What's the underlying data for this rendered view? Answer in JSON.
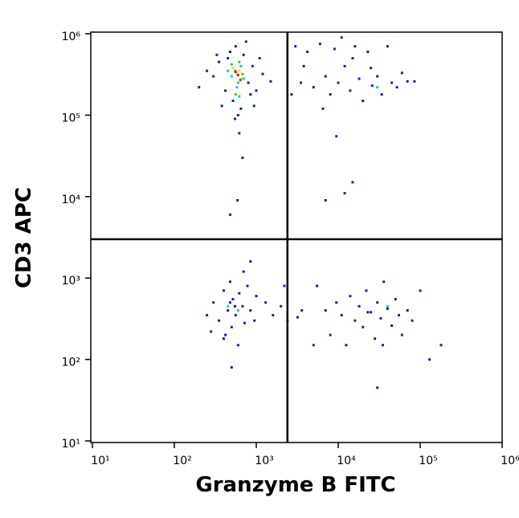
{
  "chart_data": {
    "type": "scatter",
    "x_label": "Granzyme B FITC",
    "y_label": "CD3 APC",
    "x_scale": "log",
    "y_scale": "log",
    "xlim": [
      10,
      1000000
    ],
    "ylim": [
      10,
      1000000
    ],
    "xticks": [
      {
        "value": 10,
        "label": "10¹"
      },
      {
        "value": 100,
        "label": "10²"
      },
      {
        "value": 1000,
        "label": "10³"
      },
      {
        "value": 10000,
        "label": "10⁴"
      },
      {
        "value": 100000,
        "label": "10⁵"
      },
      {
        "value": 1000000,
        "label": "10⁶"
      }
    ],
    "yticks": [
      {
        "value": 10,
        "label": "10¹"
      },
      {
        "value": 100,
        "label": "10²"
      },
      {
        "value": 1000,
        "label": "10³"
      },
      {
        "value": 10000,
        "label": "10⁴"
      },
      {
        "value": 100000,
        "label": "10⁵"
      },
      {
        "value": 1000000,
        "label": "10⁶"
      }
    ],
    "quadrant_x": 2400,
    "quadrant_y": 3000,
    "gate_color": "#000000",
    "series": [
      {
        "color": "#1c1ca8",
        "x": [
          300,
          350,
          420,
          480,
          520,
          560,
          650,
          700,
          800,
          900,
          1000,
          250,
          380,
          600,
          750,
          850,
          450,
          550,
          620,
          680,
          590,
          480,
          1200,
          1500,
          200,
          1100,
          330,
          940,
          3000,
          3500,
          4200,
          5000,
          6000,
          7000,
          8000,
          9000,
          10000,
          12000,
          14000,
          16000,
          18000,
          20000,
          23000,
          26000,
          30000,
          34000,
          40000,
          45000,
          52000,
          60000,
          70000,
          85000,
          11000,
          15000,
          6500,
          9500,
          15000,
          12000,
          7000,
          2700,
          3800,
          25000,
          300,
          350,
          400,
          420,
          450,
          480,
          500,
          520,
          560,
          600,
          620,
          680,
          720,
          780,
          850,
          950,
          1000,
          250,
          280,
          500,
          700,
          850,
          1300,
          1600,
          2000,
          2200,
          2400,
          480,
          550,
          400,
          3200,
          3600,
          5000,
          5500,
          7000,
          8000,
          9500,
          11000,
          12500,
          14000,
          16000,
          18000,
          20000,
          22000,
          25000,
          28000,
          30000,
          33000,
          36000,
          40000,
          45000,
          50000,
          55000,
          60000,
          70000,
          80000,
          100000,
          130000,
          180000,
          30000,
          35000,
          23000
        ],
        "y": [
          300000,
          450000,
          200000,
          600000,
          150000,
          700000,
          120000,
          550000,
          250000,
          400000,
          200000,
          350000,
          130000,
          100000,
          800000,
          180000,
          500000,
          90000,
          60000,
          30000,
          9000,
          6000,
          320000,
          260000,
          220000,
          500000,
          550000,
          130000,
          700000,
          250000,
          600000,
          220000,
          750000,
          300000,
          180000,
          650000,
          250000,
          400000,
          200000,
          700000,
          280000,
          150000,
          600000,
          230000,
          300000,
          180000,
          700000,
          250000,
          220000,
          330000,
          260000,
          260000,
          900000,
          500000,
          120000,
          55000,
          15000,
          11000,
          9000,
          180000,
          400000,
          380000,
          500,
          300,
          700,
          200,
          400,
          900,
          250,
          550,
          350,
          150,
          650,
          450,
          280,
          800,
          400,
          300,
          600,
          350,
          220,
          80,
          1200,
          1600,
          500,
          350,
          450,
          800,
          300,
          500,
          450,
          180,
          330,
          400,
          150,
          800,
          400,
          200,
          500,
          350,
          150,
          600,
          300,
          450,
          250,
          700,
          380,
          180,
          500,
          320,
          900,
          420,
          260,
          550,
          350,
          200,
          400,
          300,
          700,
          100,
          150,
          45,
          150,
          380
        ]
      },
      {
        "color": "#00c8d8",
        "x": [
          500,
          650,
          580,
          700,
          450,
          620,
          30000,
          450,
          600,
          40000
        ],
        "y": [
          300000,
          400000,
          220000,
          280000,
          350000,
          170000,
          220000,
          450,
          400,
          450
        ]
      },
      {
        "color": "#3cc83c",
        "x": [
          550,
          600,
          500,
          680,
          620,
          560
        ],
        "y": [
          350000,
          250000,
          420000,
          320000,
          450000,
          180000
        ]
      },
      {
        "color": "#e8e020",
        "x": [
          580,
          650,
          520,
          620
        ],
        "y": [
          320000,
          280000,
          380000,
          350000
        ]
      },
      {
        "color": "#e02010",
        "x": [
          600,
          640,
          560
        ],
        "y": [
          310000,
          270000,
          340000
        ]
      }
    ]
  }
}
